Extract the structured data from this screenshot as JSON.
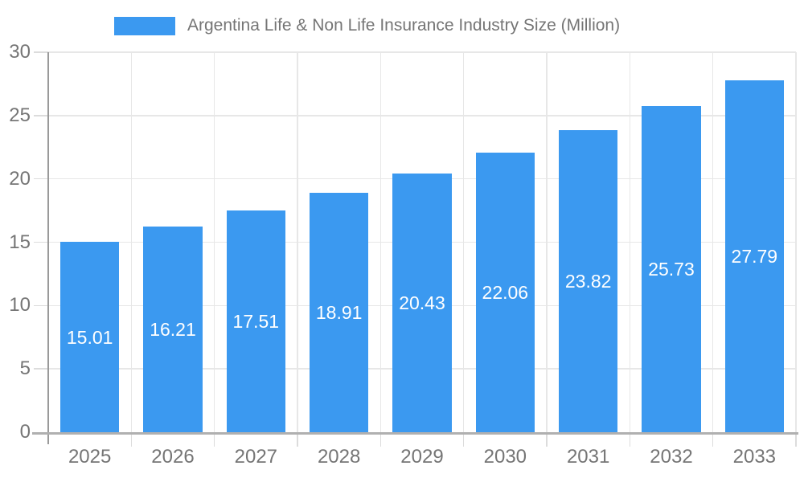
{
  "chart_data": {
    "type": "bar",
    "title": "Argentina Life & Non Life Insurance Industry Size (Million)",
    "categories": [
      "2025",
      "2026",
      "2027",
      "2028",
      "2029",
      "2030",
      "2031",
      "2032",
      "2033"
    ],
    "values": [
      15.01,
      16.21,
      17.51,
      18.91,
      20.43,
      22.06,
      23.82,
      25.73,
      27.79
    ],
    "value_labels": [
      "15.01",
      "16.21",
      "17.51",
      "18.91",
      "20.43",
      "22.06",
      "23.82",
      "25.73",
      "27.79"
    ],
    "xlabel": "",
    "ylabel": "",
    "ylim": [
      0,
      30
    ],
    "yticks": [
      0,
      5,
      10,
      15,
      20,
      25,
      30
    ],
    "ytick_labels": [
      "0",
      "5",
      "10",
      "15",
      "20",
      "25",
      "30"
    ],
    "grid": true,
    "legend_position": "top",
    "bar_width_fraction": 0.71,
    "colors": {
      "bar": "#3b99f0",
      "value_label": "#ffffff",
      "axis_text": "#757575",
      "legend_text": "#757575",
      "grid_line": "#e7e7e7",
      "tick_line": "#dcdcdc",
      "x_axis_line": "#b0b0b0",
      "y_axis_line": "#9a9a9a"
    }
  }
}
